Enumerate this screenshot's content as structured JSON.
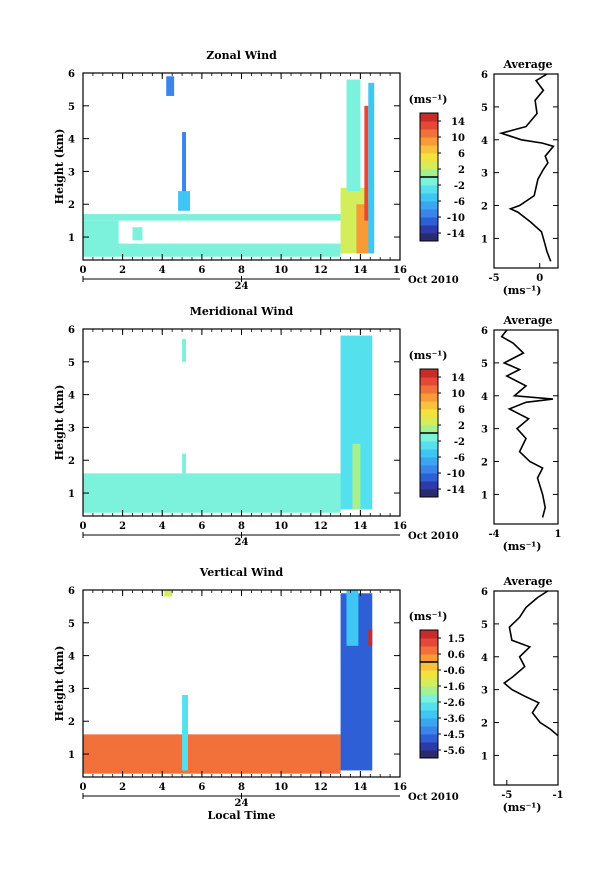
{
  "chart_data": [
    {
      "type": "heatmap",
      "title": "Zonal Wind",
      "ylabel": "Height (km)",
      "xlim": [
        0,
        16
      ],
      "ylim": [
        0.3,
        6
      ],
      "x_ticks": [
        "0",
        "2",
        "4",
        "6",
        "8",
        "10",
        "12",
        "14",
        "16"
      ],
      "y_ticks": [
        "1",
        "2",
        "3",
        "4",
        "5",
        "6"
      ],
      "date_marker": "24",
      "date_label": "Oct 2010",
      "colorbar": {
        "unit": "(ms⁻¹)",
        "ticks": [
          "14",
          "10",
          "6",
          "2",
          "-2",
          "-6",
          "-10",
          "-14"
        ],
        "range": [
          -16,
          16
        ],
        "zero_line": 0
      },
      "profile": {
        "title": "Average",
        "unit": "(ms⁻¹)",
        "xlim": [
          -5,
          2
        ],
        "x_ticks": [
          "-5",
          "0"
        ],
        "y_ticks": [
          "1",
          "2",
          "3",
          "4",
          "5",
          "6"
        ],
        "points": [
          [
            1.2,
            0.3
          ],
          [
            0.8,
            0.6
          ],
          [
            0.5,
            0.9
          ],
          [
            0.2,
            1.2
          ],
          [
            -1.0,
            1.5
          ],
          [
            -2.4,
            1.8
          ],
          [
            -3.2,
            1.9
          ],
          [
            -2.2,
            2.0
          ],
          [
            -0.6,
            2.3
          ],
          [
            -0.2,
            2.8
          ],
          [
            0.4,
            3.1
          ],
          [
            0.9,
            3.3
          ],
          [
            0.6,
            3.5
          ],
          [
            1.5,
            3.8
          ],
          [
            0.3,
            3.9
          ],
          [
            -2.0,
            4.0
          ],
          [
            -4.2,
            4.2
          ],
          [
            -1.5,
            4.4
          ],
          [
            -0.3,
            4.8
          ],
          [
            -0.5,
            5.2
          ],
          [
            0.4,
            5.5
          ],
          [
            -0.4,
            5.8
          ],
          [
            0.8,
            6.0
          ]
        ]
      },
      "cells": [
        {
          "t0": 0.0,
          "t1": 1.8,
          "h0": 0.7,
          "h1": 1.5,
          "v": -1
        },
        {
          "t0": 2.5,
          "t1": 3.0,
          "h0": 0.9,
          "h1": 1.3,
          "v": -1
        },
        {
          "t0": 0.0,
          "t1": 13.0,
          "h0": 1.5,
          "h1": 1.7,
          "v": -2
        },
        {
          "t0": 0.0,
          "t1": 13.0,
          "h0": 0.4,
          "h1": 0.8,
          "v": -1
        },
        {
          "t0": 4.2,
          "t1": 4.6,
          "h0": 5.3,
          "h1": 5.9,
          "v": -9
        },
        {
          "t0": 5.0,
          "t1": 5.2,
          "h0": 2.0,
          "h1": 4.2,
          "v": -10
        },
        {
          "t0": 4.8,
          "t1": 5.4,
          "h0": 1.8,
          "h1": 2.4,
          "v": -6
        },
        {
          "t0": 13.0,
          "t1": 14.4,
          "h0": 0.5,
          "h1": 2.5,
          "v": 3
        },
        {
          "t0": 13.8,
          "t1": 14.6,
          "h0": 0.5,
          "h1": 2.0,
          "v": 8
        },
        {
          "t0": 14.2,
          "t1": 14.4,
          "h0": 1.5,
          "h1": 5.0,
          "v": 13
        },
        {
          "t0": 13.3,
          "t1": 14.0,
          "h0": 2.4,
          "h1": 5.8,
          "v": -2
        },
        {
          "t0": 14.4,
          "t1": 14.7,
          "h0": 0.5,
          "h1": 5.7,
          "v": -5
        }
      ]
    },
    {
      "type": "heatmap",
      "title": "Meridional Wind",
      "ylabel": "Height (km)",
      "xlim": [
        0,
        16
      ],
      "ylim": [
        0.3,
        6
      ],
      "x_ticks": [
        "0",
        "2",
        "4",
        "6",
        "8",
        "10",
        "12",
        "14",
        "16"
      ],
      "y_ticks": [
        "1",
        "2",
        "3",
        "4",
        "5",
        "6"
      ],
      "date_marker": "24",
      "date_label": "Oct 2010",
      "colorbar": {
        "unit": "(ms⁻¹)",
        "ticks": [
          "14",
          "10",
          "6",
          "2",
          "-2",
          "-6",
          "-10",
          "-14"
        ],
        "range": [
          -16,
          16
        ],
        "zero_line": 0
      },
      "profile": {
        "title": "Average",
        "unit": "(ms⁻¹)",
        "xlim": [
          -4,
          1
        ],
        "x_ticks": [
          "-4",
          "1"
        ],
        "y_ticks": [
          "1",
          "2",
          "3",
          "4",
          "5",
          "6"
        ],
        "points": [
          [
            -0.2,
            0.3
          ],
          [
            0.0,
            0.6
          ],
          [
            -0.2,
            1.0
          ],
          [
            -0.6,
            1.5
          ],
          [
            -0.2,
            1.8
          ],
          [
            -1.2,
            2.0
          ],
          [
            -2.0,
            2.3
          ],
          [
            -1.5,
            2.7
          ],
          [
            -2.2,
            3.0
          ],
          [
            -1.3,
            3.3
          ],
          [
            -2.8,
            3.6
          ],
          [
            -1.5,
            3.8
          ],
          [
            0.6,
            3.9
          ],
          [
            -2.4,
            4.0
          ],
          [
            -1.5,
            4.3
          ],
          [
            -3.0,
            4.6
          ],
          [
            -2.0,
            4.8
          ],
          [
            -3.2,
            5.0
          ],
          [
            -1.7,
            5.3
          ],
          [
            -2.5,
            5.6
          ],
          [
            -3.4,
            5.8
          ],
          [
            -3.0,
            6.0
          ]
        ]
      },
      "cells": [
        {
          "t0": 0.0,
          "t1": 13.0,
          "h0": 0.4,
          "h1": 1.6,
          "v": -2
        },
        {
          "t0": 5.0,
          "t1": 5.2,
          "h0": 5.0,
          "h1": 5.7,
          "v": -2
        },
        {
          "t0": 5.0,
          "t1": 5.2,
          "h0": 1.6,
          "h1": 2.2,
          "v": -2
        },
        {
          "t0": 13.0,
          "t1": 14.6,
          "h0": 0.5,
          "h1": 5.8,
          "v": -3
        },
        {
          "t0": 13.6,
          "t1": 14.0,
          "h0": 0.5,
          "h1": 2.5,
          "v": 0
        }
      ]
    },
    {
      "type": "heatmap",
      "title": "Vertical Wind",
      "ylabel": "Height (km)",
      "xlabel": "Local Time",
      "xlim": [
        0,
        16
      ],
      "ylim": [
        0.3,
        6
      ],
      "x_ticks": [
        "0",
        "2",
        "4",
        "6",
        "8",
        "10",
        "12",
        "14",
        "16"
      ],
      "y_ticks": [
        "1",
        "2",
        "3",
        "4",
        "5",
        "6"
      ],
      "date_marker": "24",
      "date_label": "Oct 2010",
      "colorbar": {
        "unit": "(ms⁻¹)",
        "ticks": [
          "1.5",
          "0.6",
          "-0.6",
          "-1.6",
          "-2.6",
          "-3.6",
          "-4.5",
          "-5.6"
        ],
        "range": [
          -6.0,
          2.0
        ],
        "zero_line": 0
      },
      "profile": {
        "title": "Average",
        "unit": "(ms⁻¹)",
        "xlim": [
          -6,
          -1
        ],
        "x_ticks": [
          "-5",
          "-1"
        ],
        "y_ticks": [
          "1",
          "2",
          "3",
          "4",
          "5",
          "6"
        ],
        "points": [
          [
            -1.0,
            1.6
          ],
          [
            -1.6,
            1.8
          ],
          [
            -2.4,
            2.0
          ],
          [
            -3.0,
            2.3
          ],
          [
            -2.5,
            2.6
          ],
          [
            -3.6,
            2.8
          ],
          [
            -4.6,
            3.0
          ],
          [
            -5.2,
            3.2
          ],
          [
            -4.5,
            3.4
          ],
          [
            -3.6,
            3.7
          ],
          [
            -4.0,
            4.0
          ],
          [
            -3.2,
            4.3
          ],
          [
            -4.6,
            4.5
          ],
          [
            -4.8,
            4.9
          ],
          [
            -4.0,
            5.2
          ],
          [
            -3.5,
            5.5
          ],
          [
            -2.6,
            5.8
          ],
          [
            -1.8,
            6.0
          ]
        ]
      },
      "cells": [
        {
          "t0": 0.0,
          "t1": 13.0,
          "h0": 0.4,
          "h1": 1.6,
          "v": 0.6
        },
        {
          "t0": 4.1,
          "t1": 4.5,
          "h0": 5.8,
          "h1": 6.0,
          "v": -1.2
        },
        {
          "t0": 5.0,
          "t1": 5.3,
          "h0": 0.5,
          "h1": 2.8,
          "v": -3.0
        },
        {
          "t0": 13.0,
          "t1": 14.6,
          "h0": 0.5,
          "h1": 5.9,
          "v": -5.0
        },
        {
          "t0": 13.3,
          "t1": 13.9,
          "h0": 4.3,
          "h1": 6.0,
          "v": -3.5
        },
        {
          "t0": 14.4,
          "t1": 14.6,
          "h0": 4.3,
          "h1": 4.8,
          "v": 1.5
        }
      ]
    }
  ]
}
